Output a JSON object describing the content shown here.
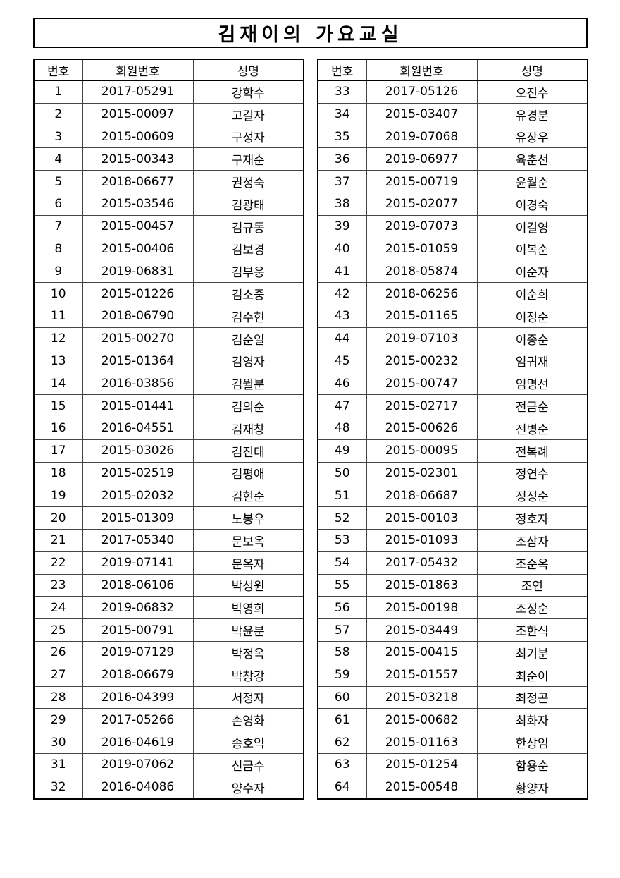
{
  "title": "김재이의 가요교실",
  "headers": [
    "번호",
    "회원번호",
    "성명"
  ],
  "left_rows": [
    [
      "1",
      "2017-05291",
      "강학수"
    ],
    [
      "2",
      "2015-00097",
      "고길자"
    ],
    [
      "3",
      "2015-00609",
      "구성자"
    ],
    [
      "4",
      "2015-00343",
      "구재순"
    ],
    [
      "5",
      "2018-06677",
      "권정숙"
    ],
    [
      "6",
      "2015-03546",
      "김광태"
    ],
    [
      "7",
      "2015-00457",
      "김규동"
    ],
    [
      "8",
      "2015-00406",
      "김보경"
    ],
    [
      "9",
      "2019-06831",
      "김부웅"
    ],
    [
      "10",
      "2015-01226",
      "김소중"
    ],
    [
      "11",
      "2018-06790",
      "김수현"
    ],
    [
      "12",
      "2015-00270",
      "김순일"
    ],
    [
      "13",
      "2015-01364",
      "김영자"
    ],
    [
      "14",
      "2016-03856",
      "김월분"
    ],
    [
      "15",
      "2015-01441",
      "김의순"
    ],
    [
      "16",
      "2016-04551",
      "김재창"
    ],
    [
      "17",
      "2015-03026",
      "김진태"
    ],
    [
      "18",
      "2015-02519",
      "김평애"
    ],
    [
      "19",
      "2015-02032",
      "김현순"
    ],
    [
      "20",
      "2015-01309",
      "노봉우"
    ],
    [
      "21",
      "2017-05340",
      "문보옥"
    ],
    [
      "22",
      "2019-07141",
      "문옥자"
    ],
    [
      "23",
      "2018-06106",
      "박성원"
    ],
    [
      "24",
      "2019-06832",
      "박영희"
    ],
    [
      "25",
      "2015-00791",
      "박윤분"
    ],
    [
      "26",
      "2019-07129",
      "박정옥"
    ],
    [
      "27",
      "2018-06679",
      "박창강"
    ],
    [
      "28",
      "2016-04399",
      "서정자"
    ],
    [
      "29",
      "2017-05266",
      "손영화"
    ],
    [
      "30",
      "2016-04619",
      "송호익"
    ],
    [
      "31",
      "2019-07062",
      "신금수"
    ],
    [
      "32",
      "2016-04086",
      "양수자"
    ]
  ],
  "right_rows": [
    [
      "33",
      "2017-05126",
      "오진수"
    ],
    [
      "34",
      "2015-03407",
      "유경분"
    ],
    [
      "35",
      "2019-07068",
      "유장우"
    ],
    [
      "36",
      "2019-06977",
      "육춘선"
    ],
    [
      "37",
      "2015-00719",
      "윤월순"
    ],
    [
      "38",
      "2015-02077",
      "이경숙"
    ],
    [
      "39",
      "2019-07073",
      "이길영"
    ],
    [
      "40",
      "2015-01059",
      "이복순"
    ],
    [
      "41",
      "2018-05874",
      "이순자"
    ],
    [
      "42",
      "2018-06256",
      "이순희"
    ],
    [
      "43",
      "2015-01165",
      "이정순"
    ],
    [
      "44",
      "2019-07103",
      "이종순"
    ],
    [
      "45",
      "2015-00232",
      "임귀재"
    ],
    [
      "46",
      "2015-00747",
      "임명선"
    ],
    [
      "47",
      "2015-02717",
      "전금순"
    ],
    [
      "48",
      "2015-00626",
      "전병순"
    ],
    [
      "49",
      "2015-00095",
      "전복례"
    ],
    [
      "50",
      "2015-02301",
      "정연수"
    ],
    [
      "51",
      "2018-06687",
      "정정순"
    ],
    [
      "52",
      "2015-00103",
      "정호자"
    ],
    [
      "53",
      "2015-01093",
      "조삼자"
    ],
    [
      "54",
      "2017-05432",
      "조순옥"
    ],
    [
      "55",
      "2015-01863",
      "조연"
    ],
    [
      "56",
      "2015-00198",
      "조정순"
    ],
    [
      "57",
      "2015-03449",
      "조한식"
    ],
    [
      "58",
      "2015-00415",
      "최기분"
    ],
    [
      "59",
      "2015-01557",
      "최순이"
    ],
    [
      "60",
      "2015-03218",
      "최정곤"
    ],
    [
      "61",
      "2015-00682",
      "최화자"
    ],
    [
      "62",
      "2015-01163",
      "한상임"
    ],
    [
      "63",
      "2015-01254",
      "함용순"
    ],
    [
      "64",
      "2015-00548",
      "황양자"
    ]
  ]
}
